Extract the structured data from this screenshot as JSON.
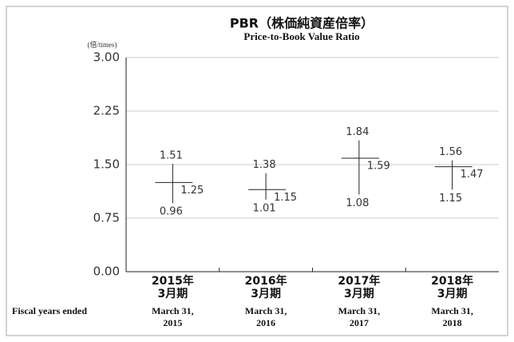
{
  "chart_data": {
    "type": "high-low-close",
    "title": "PBR（株価純資産倍率）",
    "subtitle": "Price-to-Book Value Ratio",
    "y_unit_label": "(倍/times)",
    "x_row_label": "Fiscal years ended",
    "categories": [
      [
        "2015年",
        "3月期"
      ],
      [
        "2016年",
        "3月期"
      ],
      [
        "2017年",
        "3月期"
      ],
      [
        "2018年",
        "3月期"
      ]
    ],
    "categories_en": [
      [
        "March 31,",
        "2015"
      ],
      [
        "March 31,",
        "2016"
      ],
      [
        "March 31,",
        "2017"
      ],
      [
        "March 31,",
        "2018"
      ]
    ],
    "high": [
      1.51,
      1.38,
      1.84,
      1.56
    ],
    "low": [
      0.96,
      1.01,
      1.08,
      1.15
    ],
    "close": [
      1.25,
      1.15,
      1.59,
      1.47
    ],
    "color": "#222222",
    "ylim": [
      0,
      3
    ],
    "yticks": [
      {
        "value": 0,
        "label": "0.00"
      },
      {
        "value": 0.75,
        "label": "0.75"
      },
      {
        "value": 1.5,
        "label": "1.50"
      },
      {
        "value": 2.25,
        "label": "2.25"
      },
      {
        "value": 3,
        "label": "3.00"
      }
    ],
    "grid": true
  }
}
